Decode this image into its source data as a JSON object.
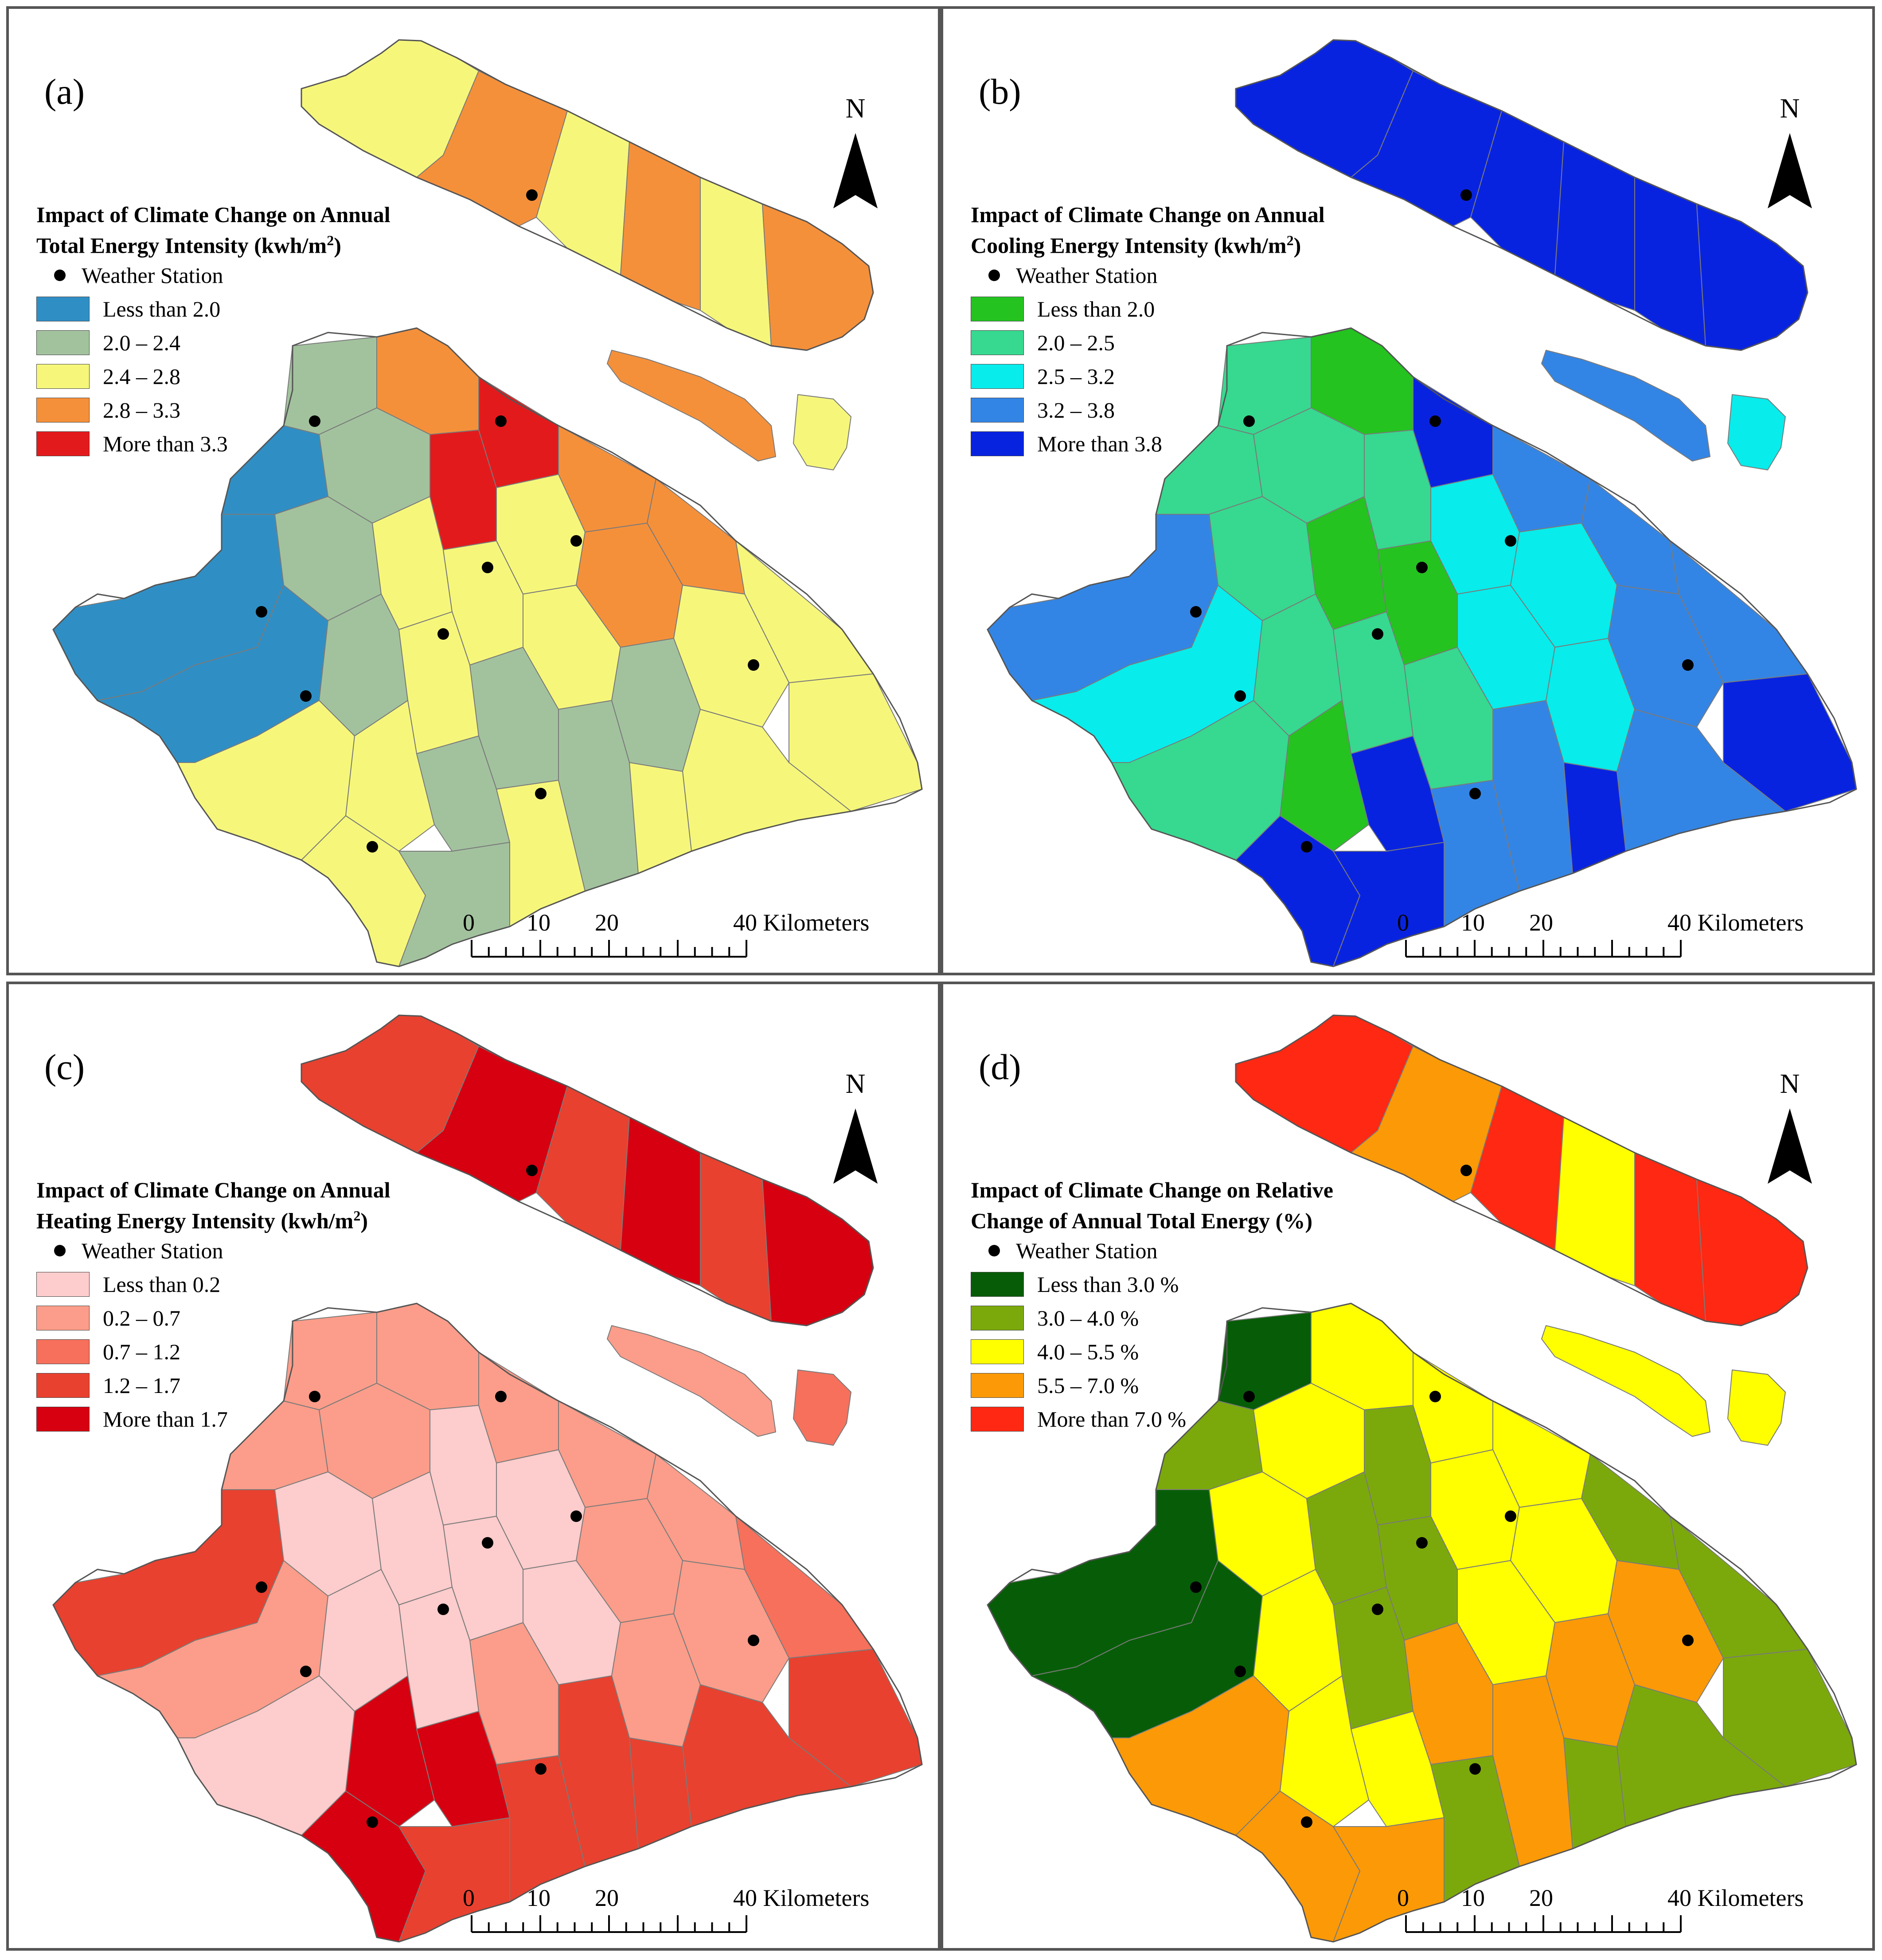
{
  "north_label": "N",
  "legend_station_label": "Weather Station",
  "scalebar": {
    "ticks": [
      "0",
      "10",
      "20",
      "40 Kilometers"
    ]
  },
  "panels": [
    {
      "id": "a",
      "letter": "(a)",
      "title_line1": "Impact of Climate Change on Annual",
      "title_line2": "Total Energy Intensity (kwh/m",
      "title_sup": "2",
      "title_end": ")",
      "classes": [
        {
          "label": "Less than 2.0",
          "color": "#2f8fc5"
        },
        {
          "label": "2.0 – 2.4",
          "color": "#a2c29e"
        },
        {
          "label": "2.4 – 2.8",
          "color": "#f6f77a"
        },
        {
          "label": "2.8 – 3.3",
          "color": "#f5903a"
        },
        {
          "label": "More than 3.3",
          "color": "#e31a1c"
        }
      ]
    },
    {
      "id": "b",
      "letter": "(b)",
      "title_line1": "Impact of Climate Change on Annual",
      "title_line2": "Cooling Energy Intensity (kwh/m",
      "title_sup": "2",
      "title_end": ")",
      "classes": [
        {
          "label": "Less than 2.0",
          "color": "#24c320"
        },
        {
          "label": "2.0 – 2.5",
          "color": "#36d98f"
        },
        {
          "label": "2.5 – 3.2",
          "color": "#08eceb"
        },
        {
          "label": "3.2 – 3.8",
          "color": "#3385e5"
        },
        {
          "label": "More than 3.8",
          "color": "#0823e0"
        }
      ]
    },
    {
      "id": "c",
      "letter": "(c)",
      "title_line1": "Impact of Climate Change on Annual",
      "title_line2": "Heating Energy Intensity (kwh/m",
      "title_sup": "2",
      "title_end": ")",
      "classes": [
        {
          "label": "Less than 0.2",
          "color": "#fdcccc"
        },
        {
          "label": "0.2 – 0.7",
          "color": "#fb9d8a"
        },
        {
          "label": "0.7 – 1.2",
          "color": "#f6705c"
        },
        {
          "label": "1.2 – 1.7",
          "color": "#e8412f"
        },
        {
          "label": "More than 1.7",
          "color": "#d60010"
        }
      ]
    },
    {
      "id": "d",
      "letter": "(d)",
      "title_line1": "Impact of Climate Change on Relative",
      "title_line2": "Change of Annual Total Energy (%)",
      "title_sup": "",
      "title_end": "",
      "classes": [
        {
          "label": "Less than 3.0 %",
          "color": "#075d07"
        },
        {
          "label": "3.0 – 4.0 %",
          "color": "#7ba90c"
        },
        {
          "label": "4.0 – 5.5 %",
          "color": "#ffff00"
        },
        {
          "label": "5.5 – 7.0 %",
          "color": "#fb9a06"
        },
        {
          "label": "More than 7.0 %",
          "color": "#ff2812"
        }
      ]
    }
  ]
}
